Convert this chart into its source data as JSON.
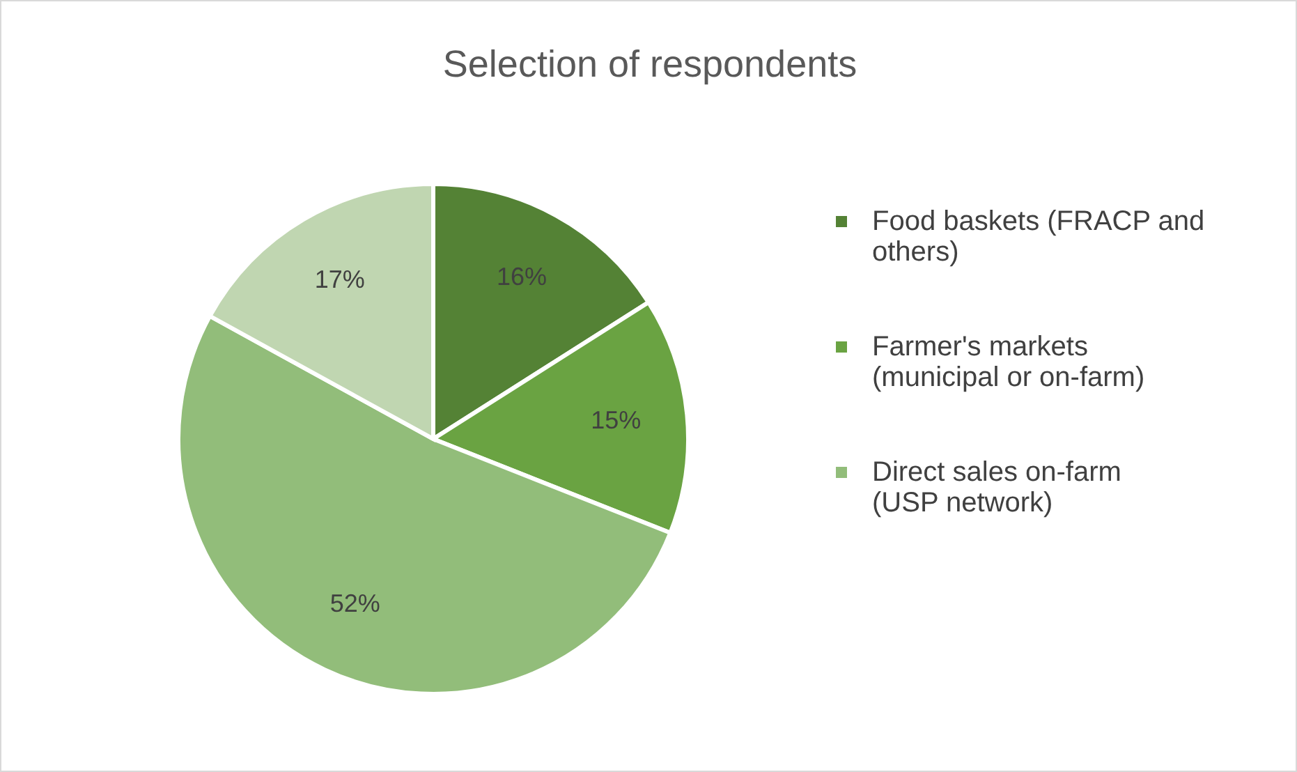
{
  "chart_data": {
    "type": "pie",
    "title": "Selection of respondents",
    "categories": [
      "Food baskets (FRACP and others)",
      "Farmer's markets (municipal or on-farm)",
      "Direct sales on-farm (USP network)",
      null
    ],
    "values": [
      16,
      15,
      52,
      17
    ],
    "colors": [
      "#548235",
      "#6aa342",
      "#92bd7a",
      "#c0d6b1"
    ],
    "value_labels": [
      "16%",
      "15%",
      "52%",
      "17%"
    ],
    "legend": "right"
  }
}
